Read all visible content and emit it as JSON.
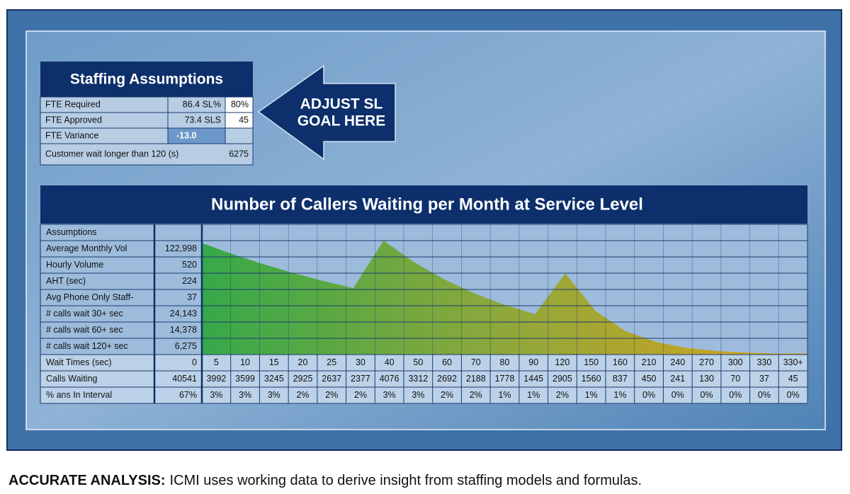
{
  "staffing": {
    "title": "Staffing Assumptions",
    "rows": [
      {
        "label": "FTE Required",
        "value": "86.4 SL%",
        "input": "80%"
      },
      {
        "label": "FTE Approved",
        "value": "73.4 SLS",
        "input": "45"
      },
      {
        "label": "FTE Variance",
        "value": "-13.0"
      }
    ],
    "wait": {
      "label": "Customer wait longer than 120 (s)",
      "value": 6275
    }
  },
  "callout": [
    "ADJUST SL",
    "GOAL HERE"
  ],
  "chart_data": {
    "type": "area",
    "title": "Number of Callers Waiting per Month at Service Level",
    "assumptions": {
      "header": "Assumptions",
      "rows": [
        {
          "label": "Average Monthly Vol",
          "value": "122,998"
        },
        {
          "label": "Hourly Volume",
          "value": 520
        },
        {
          "label": "AHT (sec)",
          "value": 224
        },
        {
          "label": "Avg Phone Only Staff-",
          "value": 37
        },
        {
          "label": "# calls wait 30+ sec",
          "value": "24,143"
        },
        {
          "label": "# calls wait 60+ sec",
          "value": "14,378"
        },
        {
          "label": "# calls wait 120+ sec",
          "value": "6,275"
        }
      ]
    },
    "row_labels": [
      "Wait Times (sec)",
      "Calls Waiting",
      "% ans In Interval"
    ],
    "summary": {
      "wait_time": 0,
      "calls_waiting": 40541,
      "percent": "67%"
    },
    "categories": [
      "5",
      "10",
      "15",
      "20",
      "25",
      "30",
      "40",
      "50",
      "60",
      "70",
      "80",
      "90",
      "120",
      "150",
      "160",
      "210",
      "240",
      "270",
      "300",
      "330",
      "330+"
    ],
    "values": [
      3992,
      3599,
      3245,
      2925,
      2637,
      2377,
      4076,
      3312,
      2692,
      2188,
      1778,
      1445,
      2905,
      1560,
      837,
      450,
      241,
      130,
      70,
      37,
      45
    ],
    "percent_answered": [
      "3%",
      "3%",
      "3%",
      "2%",
      "2%",
      "2%",
      "3%",
      "3%",
      "2%",
      "2%",
      "1%",
      "1%",
      "2%",
      "1%",
      "1%",
      "0%",
      "0%",
      "0%",
      "0%",
      "0%",
      "0%"
    ]
  },
  "caption": {
    "lead": "ACCURATE ANALYSIS:",
    "text": "ICMI uses working data to derive insight from staffing models and formulas."
  }
}
